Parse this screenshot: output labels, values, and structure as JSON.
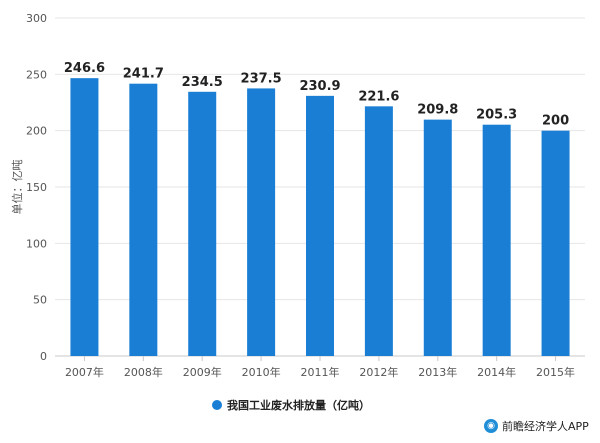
{
  "chart_data": {
    "type": "bar",
    "categories": [
      "2007年",
      "2008年",
      "2009年",
      "2010年",
      "2011年",
      "2012年",
      "2013年",
      "2014年",
      "2015年"
    ],
    "series": [
      {
        "name": "我国工业废水排放量（亿吨）",
        "values": [
          246.6,
          241.7,
          234.5,
          237.5,
          230.9,
          221.6,
          209.8,
          205.3,
          200
        ]
      }
    ],
    "data_labels": [
      "246.6",
      "241.7",
      "234.5",
      "237.5",
      "230.9",
      "221.6",
      "209.8",
      "205.3",
      "200"
    ],
    "ylabel": "单位：亿吨",
    "ylim": [
      0,
      300
    ],
    "yticks": [
      0,
      50,
      100,
      150,
      200,
      250,
      300
    ],
    "grid": true,
    "legend_position": "bottom-center",
    "bar_color": "#1a7fd4"
  },
  "footer": {
    "credit": "前瞻经济学人APP"
  }
}
